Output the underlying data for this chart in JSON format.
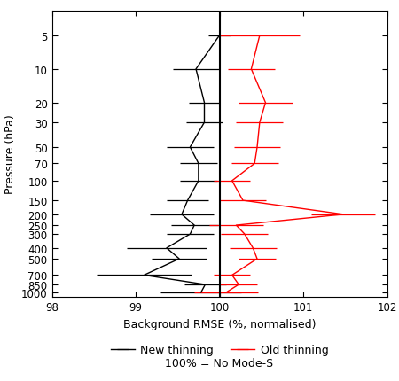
{
  "pressure_levels": [
    5,
    10,
    20,
    30,
    50,
    70,
    100,
    150,
    200,
    250,
    300,
    400,
    500,
    700,
    850,
    1000
  ],
  "new_thinning_values": [
    100.0,
    99.72,
    99.82,
    99.82,
    99.65,
    99.75,
    99.75,
    99.62,
    99.55,
    99.7,
    99.65,
    99.37,
    99.52,
    99.1,
    99.83,
    99.78
  ],
  "new_thinning_xerr": [
    0.13,
    0.28,
    0.18,
    0.22,
    0.28,
    0.22,
    0.22,
    0.25,
    0.38,
    0.28,
    0.28,
    0.48,
    0.33,
    0.57,
    0.25,
    0.48
  ],
  "old_thinning_values": [
    100.48,
    100.38,
    100.55,
    100.48,
    100.45,
    100.42,
    100.15,
    100.28,
    101.48,
    100.2,
    100.3,
    100.4,
    100.45,
    100.15,
    100.23,
    100.08
  ],
  "old_thinning_xerr_neg": [
    0.48,
    0.28,
    0.32,
    0.28,
    0.28,
    0.28,
    0.22,
    0.28,
    0.38,
    0.32,
    0.28,
    0.28,
    0.22,
    0.22,
    0.22,
    0.38
  ],
  "old_thinning_xerr_pos": [
    0.48,
    0.28,
    0.32,
    0.28,
    0.28,
    0.28,
    0.22,
    0.28,
    0.38,
    0.32,
    0.28,
    0.28,
    0.22,
    0.22,
    0.22,
    0.38
  ],
  "new_color": "#000000",
  "old_color": "#ff0000",
  "ref_line_x": 100.0,
  "xlim": [
    98,
    102
  ],
  "xticks": [
    98,
    99,
    100,
    101,
    102
  ],
  "xlabel": "Background RMSE (%, normalised)",
  "ylabel": "Pressure (hPa)",
  "legend_new": "New thinning",
  "legend_old": "Old thinning",
  "legend_ref": "100% = No Mode-S",
  "background_color": "#ffffff",
  "figsize": [
    4.5,
    4.31
  ],
  "dpi": 100
}
